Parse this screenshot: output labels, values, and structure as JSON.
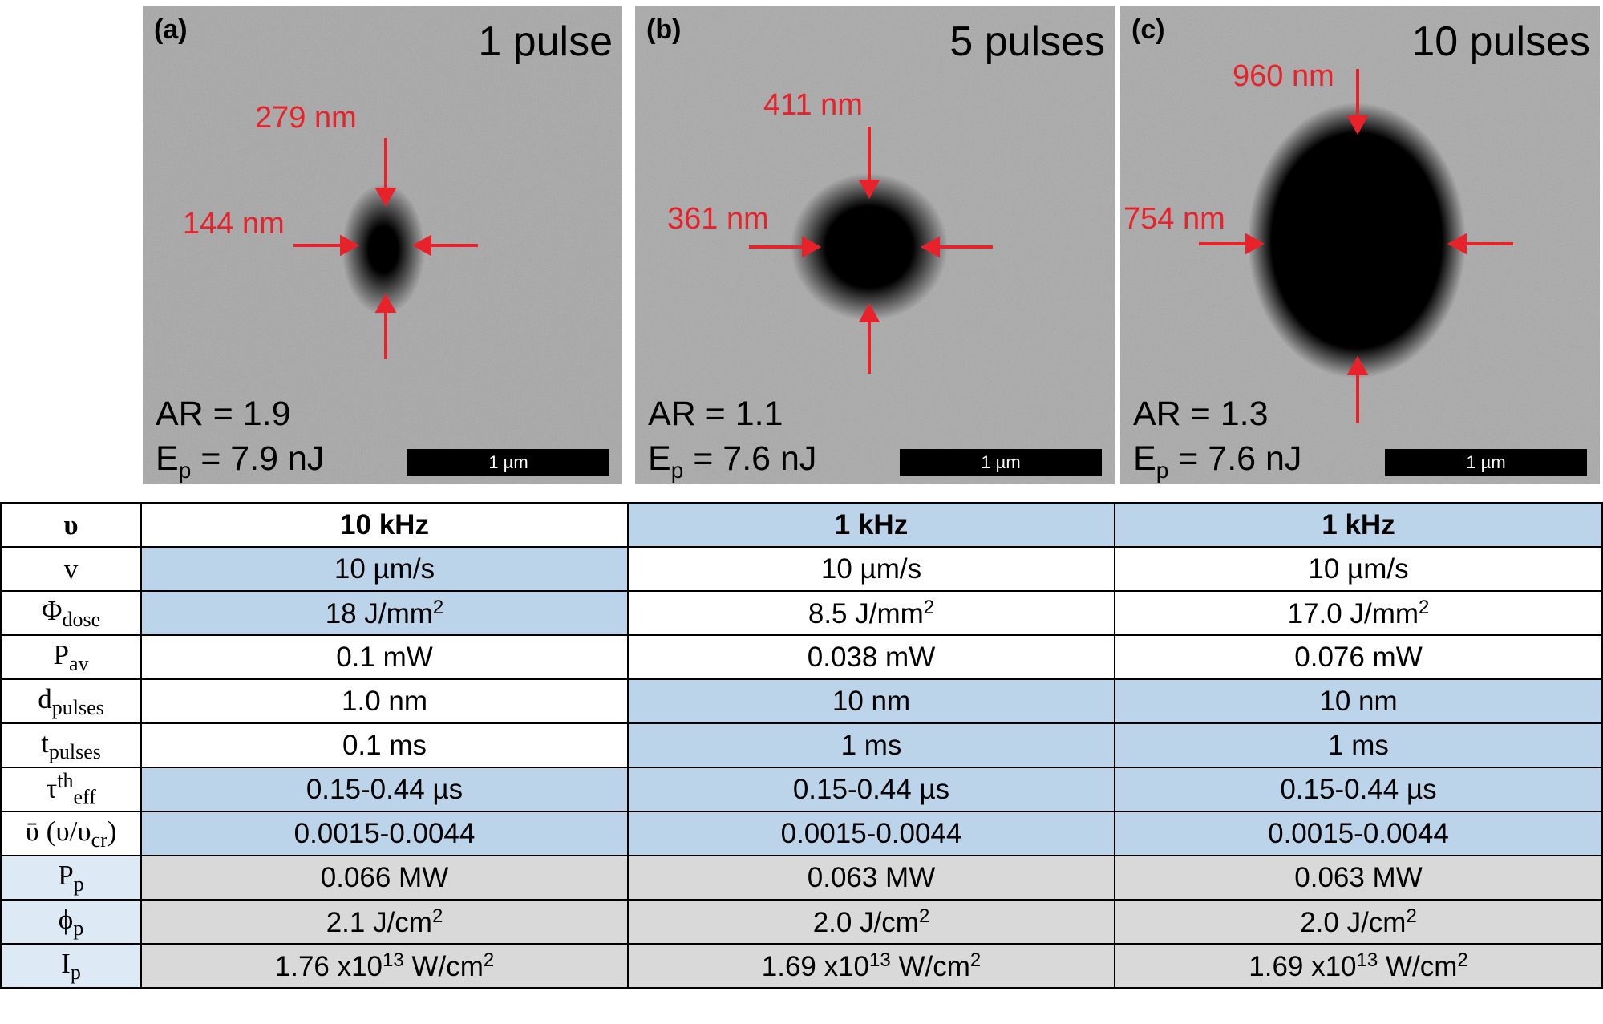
{
  "panels": [
    {
      "letter": "(a)",
      "pulses": "1 pulse",
      "top_dim": "279 nm",
      "side_dim": "144 nm",
      "ar": "AR = 1.9",
      "ep_value": "= 7.9 nJ",
      "scale": "1 µm"
    },
    {
      "letter": "(b)",
      "pulses": "5 pulses",
      "top_dim": "411 nm",
      "side_dim": "361 nm",
      "ar": "AR = 1.1",
      "ep_value": "= 7.6 nJ",
      "scale": "1 µm"
    },
    {
      "letter": "(c)",
      "pulses": "10 pulses",
      "top_dim": "960 nm",
      "side_dim": "754 nm",
      "ar": "AR = 1.3",
      "ep_value": "= 7.6 nJ",
      "scale": "1 µm"
    }
  ],
  "ep_symbol": "E",
  "ep_sub": "p",
  "table": {
    "header": {
      "label": "υ",
      "cols": [
        "10 kHz",
        "1 kHz",
        "1 kHz"
      ]
    },
    "rows": [
      {
        "label": "v",
        "sub": "",
        "sup": "",
        "cols": [
          "10 µm/s",
          "10 µm/s",
          "10 µm/s"
        ]
      },
      {
        "label": "Φ",
        "sub": "dose",
        "sup": "",
        "cols": [
          "18 J/mm",
          "8.5 J/mm",
          "17.0 J/mm"
        ],
        "unit_sup": "2"
      },
      {
        "label": "P",
        "sub": "av",
        "sup": "",
        "cols": [
          "0.1 mW",
          "0.038 mW",
          "0.076 mW"
        ]
      },
      {
        "label": "d",
        "sub": "pulses",
        "sup": "",
        "cols": [
          "1.0 nm",
          "10 nm",
          "10 nm"
        ]
      },
      {
        "label": "t",
        "sub": "pulses",
        "sup": "",
        "cols": [
          "0.1 ms",
          "1 ms",
          "1 ms"
        ]
      },
      {
        "label": "τ",
        "sub": "eff",
        "sup": "th",
        "cols": [
          "0.15-0.44 µs",
          "0.15-0.44 µs",
          "0.15-0.44 µs"
        ]
      },
      {
        "label": "ῡ (υ/υ",
        "sub": "cr",
        "tail": ")",
        "cols": [
          "0.0015-0.0044",
          "0.0015-0.0044",
          "0.0015-0.0044"
        ]
      },
      {
        "label": "P",
        "sub": "p",
        "sup": "",
        "cols": [
          "0.066 MW",
          "0.063 MW",
          "0.063 MW"
        ]
      },
      {
        "label": "ϕ",
        "sub": "p",
        "sup": "",
        "cols": [
          "2.1 J/cm",
          "2.0 J/cm",
          "2.0 J/cm"
        ],
        "unit_sup": "2"
      },
      {
        "label": "I",
        "sub": "p",
        "sup": "",
        "cols": [
          "1.76 x10",
          "1.69 x10",
          "1.69 x10"
        ],
        "mid_sup": "13",
        "tail_unit": " W/cm",
        "unit_sup": "2"
      }
    ]
  }
}
